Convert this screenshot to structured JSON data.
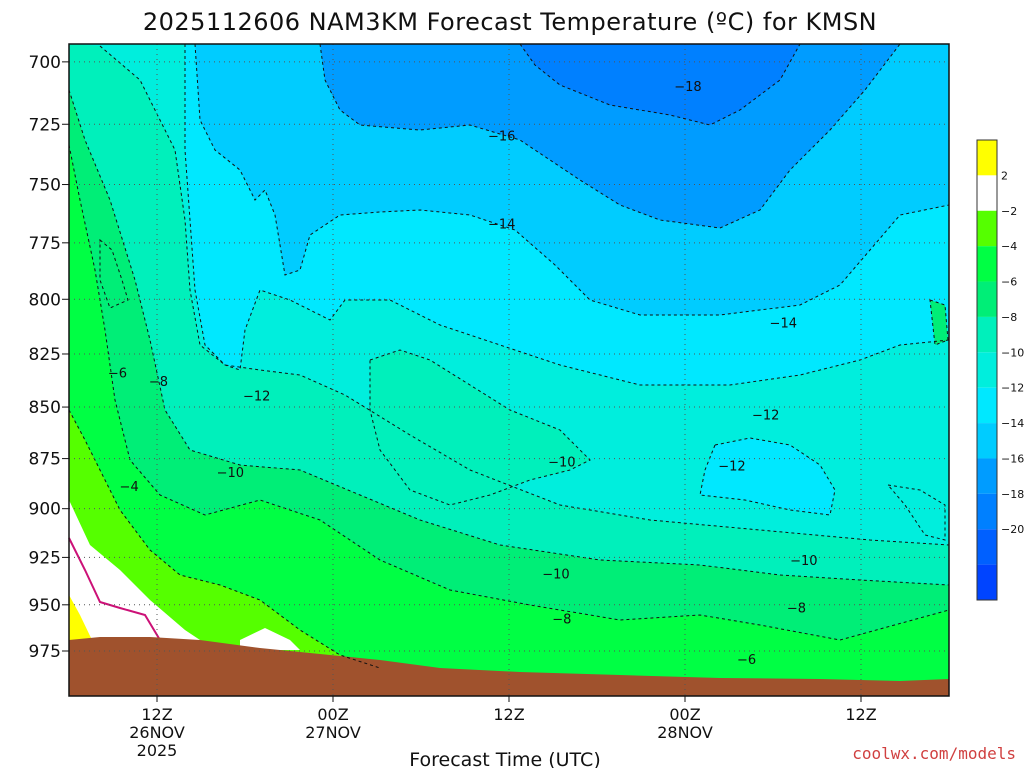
{
  "chart_data": {
    "type": "heatmap",
    "title": "2025112606 NAM3KM Forecast Temperature (ºC) for KMSN",
    "xlabel": "Forecast Time (UTC)",
    "credit": "coolwx.com/models",
    "y_axis": {
      "ticks": [
        "700",
        "725",
        "750",
        "775",
        "800",
        "825",
        "850",
        "875",
        "900",
        "925",
        "950",
        "975"
      ],
      "values": [
        700,
        725,
        750,
        775,
        800,
        825,
        850,
        875,
        900,
        925,
        950,
        975
      ],
      "range": [
        693,
        1000
      ],
      "scale": "log-pressure"
    },
    "x_axis": {
      "ticks": [
        {
          "hour": 6,
          "line1": "12Z",
          "line2": "26NOV",
          "line3": "2025"
        },
        {
          "hour": 18,
          "line1": "00Z",
          "line2": "27NOV",
          "line3": ""
        },
        {
          "hour": 30,
          "line1": "12Z",
          "line2": "",
          "line3": ""
        },
        {
          "hour": 42,
          "line1": "00Z",
          "line2": "28NOV",
          "line3": ""
        },
        {
          "hour": 54,
          "line1": "12Z",
          "line2": "",
          "line3": ""
        }
      ],
      "range_hours": [
        0,
        60
      ]
    },
    "colorbar": {
      "labels": [
        "2",
        "-2",
        "-4",
        "-6",
        "-8",
        "-10",
        "-12",
        "-14",
        "-16",
        "-18",
        "-20"
      ],
      "colors": [
        "#ffff00",
        "#ffffff",
        "#55ff00",
        "#00ff44",
        "#00ee77",
        "#00f0bb",
        "#00eedd",
        "#00e8ff",
        "#00ccff",
        "#009cff",
        "#0080ff",
        "#0060ff",
        "#0044ff"
      ]
    },
    "contour_labels": [
      {
        "text": "-18",
        "hour": 42.2,
        "p": 710
      },
      {
        "text": "-16",
        "hour": 29.5,
        "p": 730
      },
      {
        "text": "-14",
        "hour": 29.5,
        "p": 767
      },
      {
        "text": "-14",
        "hour": 48.7,
        "p": 811
      },
      {
        "text": "-12",
        "hour": 12.8,
        "p": 845
      },
      {
        "text": "-12",
        "hour": 47.5,
        "p": 854
      },
      {
        "text": "-12",
        "hour": 45.2,
        "p": 879
      },
      {
        "text": "-10",
        "hour": 11.0,
        "p": 882
      },
      {
        "text": "-10",
        "hour": 33.6,
        "p": 877
      },
      {
        "text": "-10",
        "hour": 33.2,
        "p": 934
      },
      {
        "text": "-10",
        "hour": 50.1,
        "p": 927
      },
      {
        "text": "-8",
        "hour": 6.1,
        "p": 838
      },
      {
        "text": "-8",
        "hour": 33.6,
        "p": 958
      },
      {
        "text": "-8",
        "hour": 49.6,
        "p": 952
      },
      {
        "text": "-6",
        "hour": 3.3,
        "p": 834
      },
      {
        "text": "-6",
        "hour": 46.2,
        "p": 980
      },
      {
        "text": "-4",
        "hour": 4.1,
        "p": 889
      }
    ]
  }
}
